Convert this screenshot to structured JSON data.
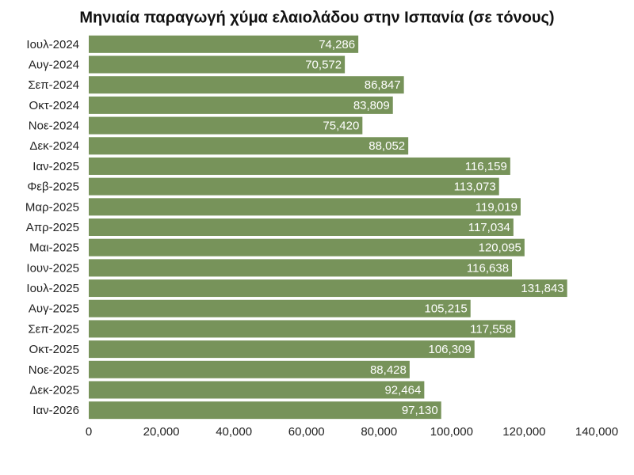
{
  "chart_data": {
    "type": "bar",
    "orientation": "horizontal",
    "title": "Μηνιαία παραγωγή χύμα ελαιολάδου στην Ισπανία (σε τόνους)",
    "categories": [
      "Ιουλ-2024",
      "Αυγ-2024",
      "Σεπ-2024",
      "Οκτ-2024",
      "Νοε-2024",
      "Δεκ-2024",
      "Ιαν-2025",
      "Φεβ-2025",
      "Μαρ-2025",
      "Απρ-2025",
      "Μαι-2025",
      "Ιουν-2025",
      "Ιουλ-2025",
      "Αυγ-2025",
      "Σεπ-2025",
      "Οκτ-2025",
      "Νοε-2025",
      "Δεκ-2025",
      "Ιαν-2026"
    ],
    "values": [
      74286,
      70572,
      86847,
      83809,
      75420,
      88052,
      116159,
      113073,
      119019,
      117034,
      120095,
      116638,
      131843,
      105215,
      117558,
      106309,
      88428,
      92464,
      97130
    ],
    "value_labels": [
      "74,286",
      "70,572",
      "86,847",
      "83,809",
      "75,420",
      "88,052",
      "116,159",
      "113,073",
      "119,019",
      "117,034",
      "120,095",
      "116,638",
      "131,843",
      "105,215",
      "117,558",
      "106,309",
      "88,428",
      "92,464",
      "97,130"
    ],
    "color": "#77935a",
    "xlim": [
      0,
      140000
    ],
    "xticks": [
      0,
      {
        "value": 20000,
        "label": "20,000"
      },
      {
        "value": 40000,
        "label": "40,000"
      },
      {
        "value": 60000,
        "label": "60,000"
      },
      {
        "value": 80000,
        "label": "80,000"
      },
      {
        "value": 100000,
        "label": "100,000"
      },
      {
        "value": 120000,
        "label": "120,000"
      },
      {
        "value": 140000,
        "label": "140,000"
      }
    ],
    "grid": false
  }
}
